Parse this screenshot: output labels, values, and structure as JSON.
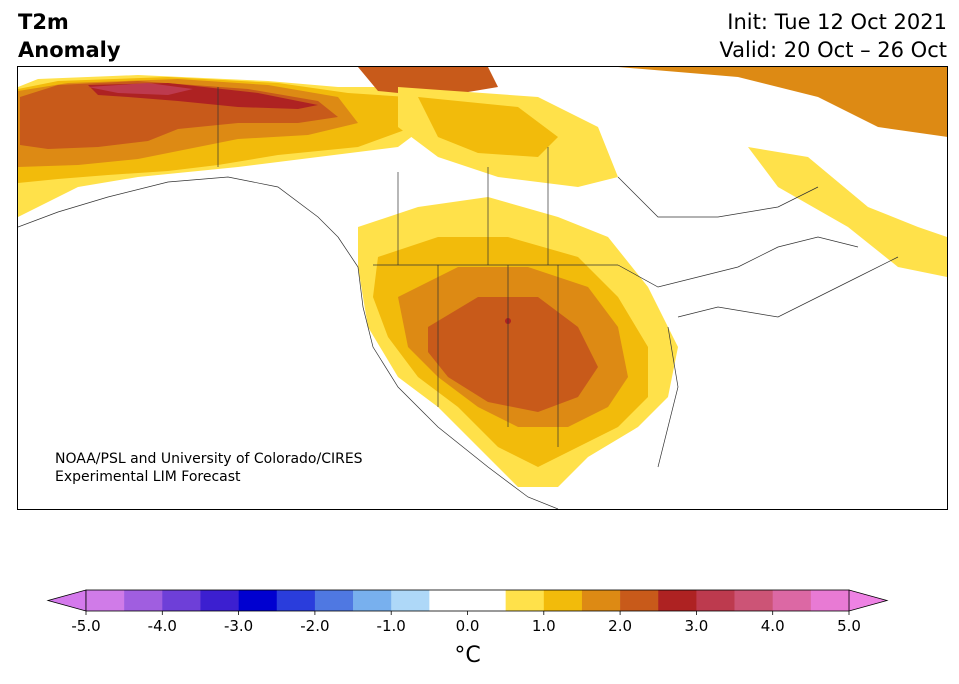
{
  "header": {
    "title_line1": "T2m",
    "title_line2": "Anomaly",
    "init": "Init: Tue 12 Oct 2021",
    "valid": "Valid: 20 Oct – 26 Oct"
  },
  "credit": {
    "line1": "NOAA/PSL and University of Colorado/CIRES",
    "line2": "Experimental LIM Forecast"
  },
  "colorbar": {
    "unit": "°C",
    "ticks": [
      "-5.0",
      "-4.0",
      "-3.0",
      "-2.0",
      "-1.0",
      "0.0",
      "1.0",
      "2.0",
      "3.0",
      "4.0",
      "5.0"
    ],
    "bins": [
      {
        "lo": -5.0,
        "hi": -4.5,
        "color": "#d07be8"
      },
      {
        "lo": -4.5,
        "hi": -4.0,
        "color": "#a05ee0"
      },
      {
        "lo": -4.0,
        "hi": -3.5,
        "color": "#6e3fd8"
      },
      {
        "lo": -3.5,
        "hi": -3.0,
        "color": "#3c1fd0"
      },
      {
        "lo": -3.0,
        "hi": -2.5,
        "color": "#0000d0"
      },
      {
        "lo": -2.5,
        "hi": -2.0,
        "color": "#2a3ddc"
      },
      {
        "lo": -2.0,
        "hi": -1.5,
        "color": "#4f78e2"
      },
      {
        "lo": -1.5,
        "hi": -1.0,
        "color": "#78b0ee"
      },
      {
        "lo": -1.0,
        "hi": -0.5,
        "color": "#aed8f8"
      },
      {
        "lo": -0.5,
        "hi": 0.0,
        "color": "#ffffff"
      },
      {
        "lo": 0.0,
        "hi": 0.5,
        "color": "#ffffff"
      },
      {
        "lo": 0.5,
        "hi": 1.0,
        "color": "#ffe14a"
      },
      {
        "lo": 1.0,
        "hi": 1.5,
        "color": "#f2bb0b"
      },
      {
        "lo": 1.5,
        "hi": 2.0,
        "color": "#dd8a14"
      },
      {
        "lo": 2.0,
        "hi": 2.5,
        "color": "#c85a1a"
      },
      {
        "lo": 2.5,
        "hi": 3.0,
        "color": "#ae2222"
      },
      {
        "lo": 3.0,
        "hi": 3.5,
        "color": "#bd3a4e"
      },
      {
        "lo": 3.5,
        "hi": 4.0,
        "color": "#cc5476"
      },
      {
        "lo": 4.0,
        "hi": 4.5,
        "color": "#dc68a4"
      },
      {
        "lo": 4.5,
        "hi": 5.0,
        "color": "#e87ad4"
      }
    ],
    "under_color": "#d479ec",
    "over_color": "#ee82e4"
  }
}
